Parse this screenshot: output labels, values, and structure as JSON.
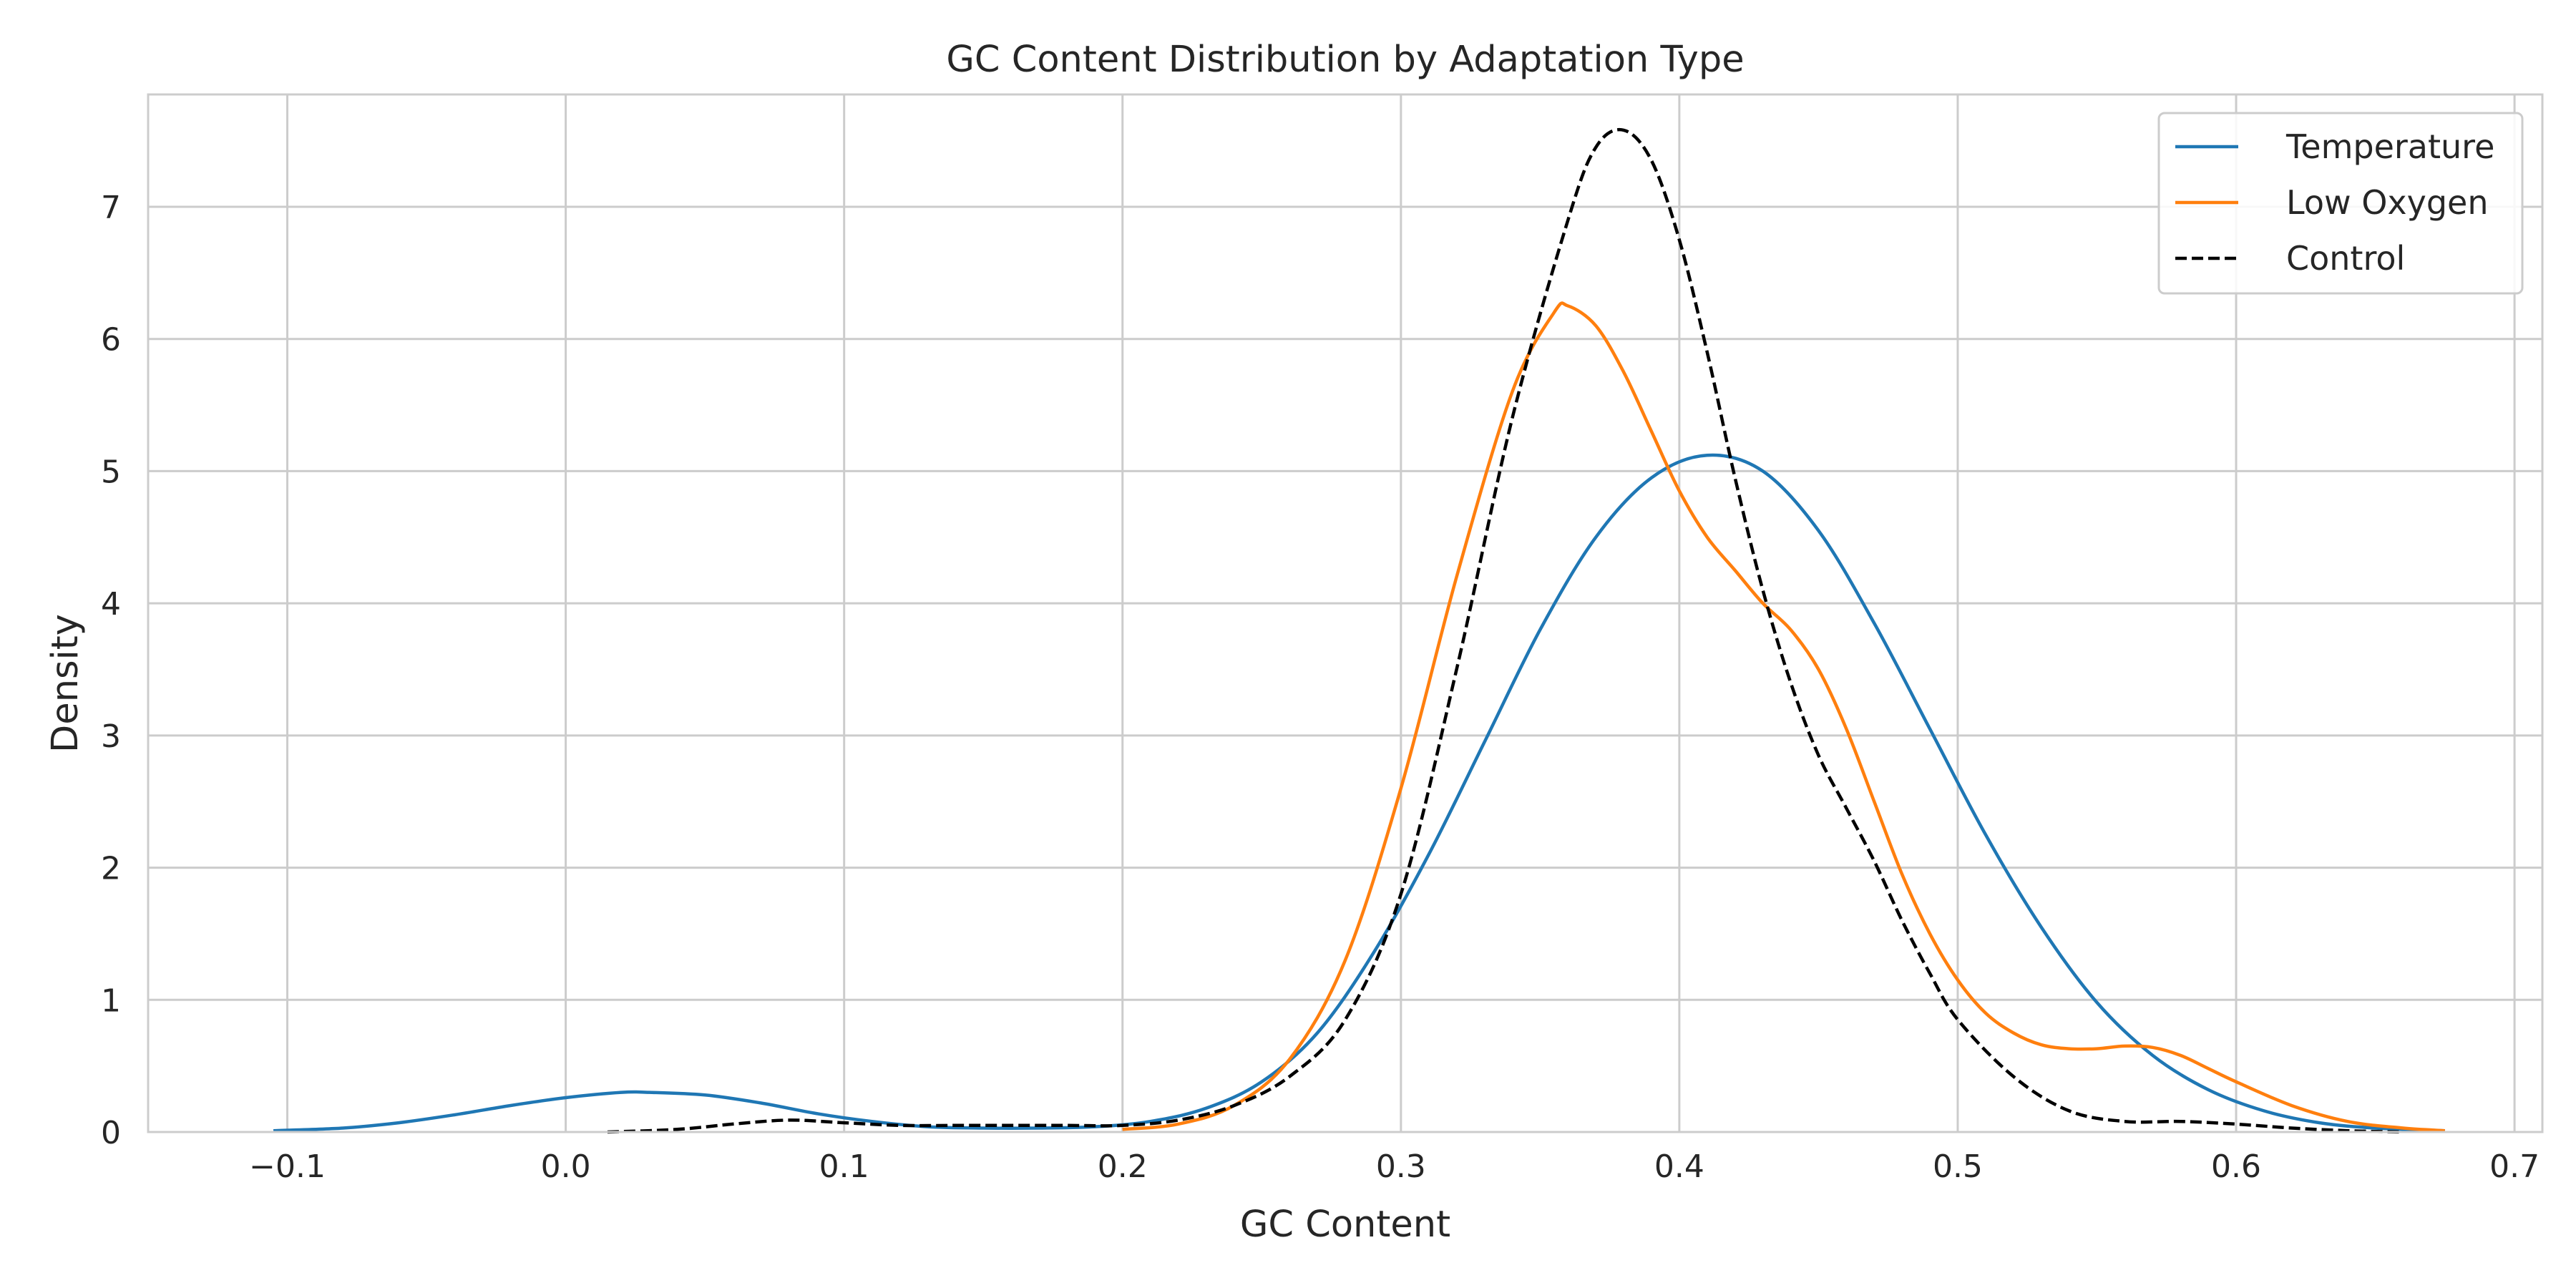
{
  "chart_data": {
    "type": "line",
    "title": "GC Content Distribution by Adaptation Type",
    "xlabel": "GC Content",
    "ylabel": "Density",
    "xlim": [
      -0.15,
      0.71
    ],
    "ylim": [
      0,
      7.85
    ],
    "x_ticks": [
      -0.1,
      0.0,
      0.1,
      0.2,
      0.3,
      0.4,
      0.5,
      0.6,
      0.7
    ],
    "x_tick_labels": [
      "−0.1",
      "0.0",
      "0.1",
      "0.2",
      "0.3",
      "0.4",
      "0.5",
      "0.6",
      "0.7"
    ],
    "y_ticks": [
      0,
      1,
      2,
      3,
      4,
      5,
      6,
      7
    ],
    "y_tick_labels": [
      "0",
      "1",
      "2",
      "3",
      "4",
      "5",
      "6",
      "7"
    ],
    "grid": true,
    "legend_position": "top-right",
    "series": [
      {
        "name": "Temperature",
        "color": "#1f77b4",
        "dash": "solid",
        "points": [
          [
            -0.105,
            0.01
          ],
          [
            -0.08,
            0.03
          ],
          [
            -0.06,
            0.07
          ],
          [
            -0.04,
            0.13
          ],
          [
            -0.02,
            0.2
          ],
          [
            0.0,
            0.26
          ],
          [
            0.02,
            0.3
          ],
          [
            0.03,
            0.3
          ],
          [
            0.05,
            0.28
          ],
          [
            0.07,
            0.22
          ],
          [
            0.09,
            0.14
          ],
          [
            0.11,
            0.08
          ],
          [
            0.13,
            0.04
          ],
          [
            0.15,
            0.03
          ],
          [
            0.17,
            0.03
          ],
          [
            0.19,
            0.04
          ],
          [
            0.21,
            0.08
          ],
          [
            0.23,
            0.18
          ],
          [
            0.25,
            0.38
          ],
          [
            0.27,
            0.75
          ],
          [
            0.29,
            1.35
          ],
          [
            0.31,
            2.1
          ],
          [
            0.33,
            2.95
          ],
          [
            0.35,
            3.8
          ],
          [
            0.37,
            4.5
          ],
          [
            0.39,
            4.95
          ],
          [
            0.41,
            5.12
          ],
          [
            0.43,
            5.0
          ],
          [
            0.45,
            4.55
          ],
          [
            0.47,
            3.85
          ],
          [
            0.49,
            3.05
          ],
          [
            0.51,
            2.25
          ],
          [
            0.53,
            1.55
          ],
          [
            0.55,
            0.98
          ],
          [
            0.57,
            0.58
          ],
          [
            0.59,
            0.32
          ],
          [
            0.61,
            0.16
          ],
          [
            0.63,
            0.07
          ],
          [
            0.65,
            0.03
          ],
          [
            0.675,
            0.01
          ]
        ]
      },
      {
        "name": "Low Oxygen",
        "color": "#ff7f0e",
        "dash": "solid",
        "points": [
          [
            0.2,
            0.02
          ],
          [
            0.22,
            0.06
          ],
          [
            0.24,
            0.2
          ],
          [
            0.26,
            0.55
          ],
          [
            0.28,
            1.3
          ],
          [
            0.3,
            2.6
          ],
          [
            0.32,
            4.2
          ],
          [
            0.34,
            5.6
          ],
          [
            0.355,
            6.2
          ],
          [
            0.36,
            6.25
          ],
          [
            0.37,
            6.1
          ],
          [
            0.38,
            5.75
          ],
          [
            0.39,
            5.3
          ],
          [
            0.4,
            4.85
          ],
          [
            0.41,
            4.5
          ],
          [
            0.42,
            4.25
          ],
          [
            0.43,
            4.0
          ],
          [
            0.44,
            3.8
          ],
          [
            0.45,
            3.5
          ],
          [
            0.46,
            3.05
          ],
          [
            0.47,
            2.5
          ],
          [
            0.48,
            1.95
          ],
          [
            0.49,
            1.5
          ],
          [
            0.5,
            1.15
          ],
          [
            0.51,
            0.9
          ],
          [
            0.52,
            0.75
          ],
          [
            0.53,
            0.66
          ],
          [
            0.54,
            0.63
          ],
          [
            0.55,
            0.63
          ],
          [
            0.56,
            0.65
          ],
          [
            0.57,
            0.64
          ],
          [
            0.58,
            0.58
          ],
          [
            0.59,
            0.48
          ],
          [
            0.6,
            0.38
          ],
          [
            0.62,
            0.2
          ],
          [
            0.64,
            0.08
          ],
          [
            0.66,
            0.03
          ],
          [
            0.675,
            0.01
          ]
        ]
      },
      {
        "name": "Control",
        "color": "#000000",
        "dash": "dashed",
        "points": [
          [
            0.015,
            0.0
          ],
          [
            0.04,
            0.02
          ],
          [
            0.06,
            0.06
          ],
          [
            0.08,
            0.09
          ],
          [
            0.1,
            0.07
          ],
          [
            0.12,
            0.05
          ],
          [
            0.14,
            0.05
          ],
          [
            0.16,
            0.05
          ],
          [
            0.18,
            0.05
          ],
          [
            0.2,
            0.05
          ],
          [
            0.22,
            0.09
          ],
          [
            0.24,
            0.2
          ],
          [
            0.26,
            0.42
          ],
          [
            0.28,
            0.85
          ],
          [
            0.3,
            1.8
          ],
          [
            0.32,
            3.5
          ],
          [
            0.34,
            5.4
          ],
          [
            0.36,
            6.9
          ],
          [
            0.37,
            7.45
          ],
          [
            0.38,
            7.58
          ],
          [
            0.39,
            7.35
          ],
          [
            0.4,
            6.75
          ],
          [
            0.41,
            5.9
          ],
          [
            0.42,
            4.95
          ],
          [
            0.43,
            4.1
          ],
          [
            0.44,
            3.4
          ],
          [
            0.45,
            2.85
          ],
          [
            0.46,
            2.45
          ],
          [
            0.47,
            2.05
          ],
          [
            0.48,
            1.6
          ],
          [
            0.49,
            1.2
          ],
          [
            0.5,
            0.85
          ],
          [
            0.52,
            0.42
          ],
          [
            0.54,
            0.16
          ],
          [
            0.56,
            0.08
          ],
          [
            0.58,
            0.08
          ],
          [
            0.6,
            0.06
          ],
          [
            0.62,
            0.03
          ],
          [
            0.64,
            0.01
          ],
          [
            0.66,
            0.0
          ]
        ]
      }
    ]
  }
}
